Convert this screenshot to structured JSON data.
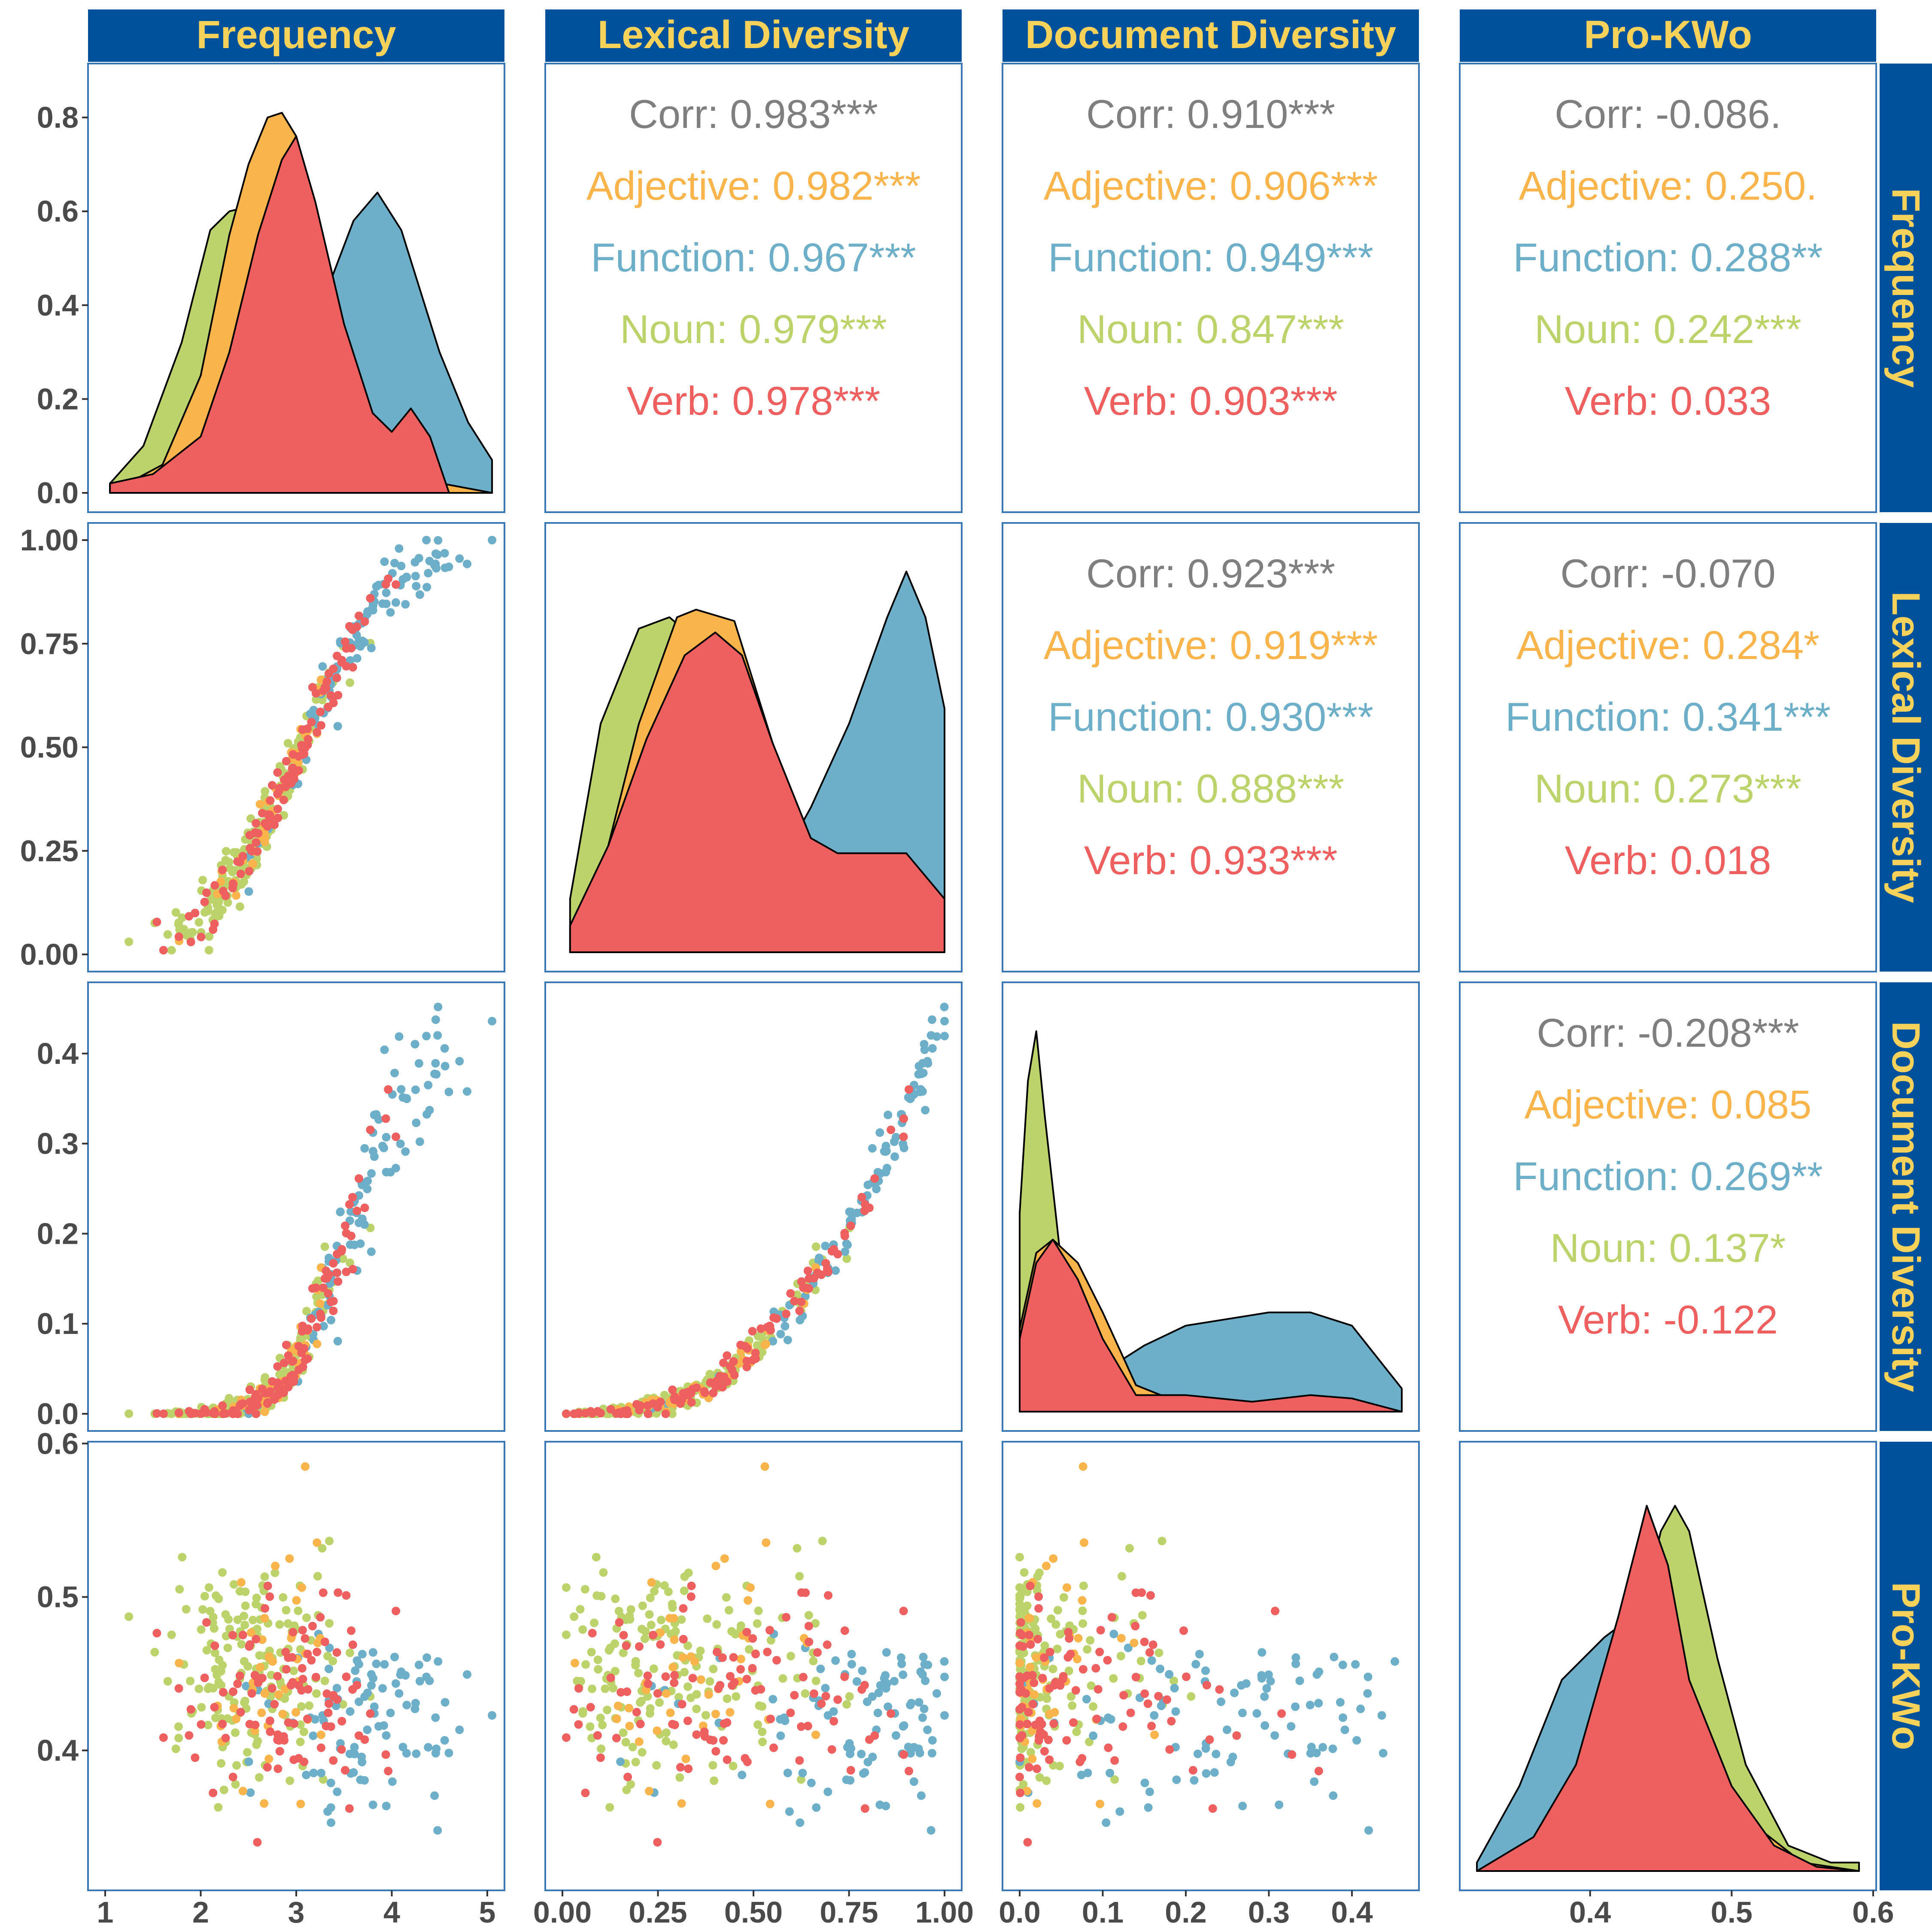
{
  "colors": {
    "strip_bg": "#00519c",
    "strip_text": "#f6d25a",
    "panel_border": "#3a78b5",
    "corr": "#7f7f7f",
    "Adjective": "#f9b44b",
    "Function": "#6daec9",
    "Noun": "#bcd36b",
    "Verb": "#ee5f5f"
  },
  "variables": [
    "Frequency",
    "Lexical Diversity",
    "Document Diversity",
    "Pro-KWo"
  ],
  "chart_data": {
    "type": "scatter",
    "groups": [
      "Adjective",
      "Function",
      "Noun",
      "Verb"
    ],
    "axes": {
      "Frequency": {
        "range": [
          1.0,
          5.0
        ],
        "ticks": [
          1,
          2,
          3,
          4,
          5
        ],
        "tick_labels": [
          "1",
          "2",
          "3",
          "4",
          "5"
        ]
      },
      "Lexical Diversity": {
        "range": [
          0.0,
          1.0
        ],
        "ticks": [
          0,
          0.25,
          0.5,
          0.75,
          1.0
        ],
        "tick_labels": [
          "0.00",
          "0.25",
          "0.50",
          "0.75",
          "1.00"
        ]
      },
      "Document Diversity": {
        "range": [
          0.0,
          0.46
        ],
        "ticks": [
          0,
          0.1,
          0.2,
          0.3,
          0.4
        ],
        "tick_labels": [
          "0.0",
          "0.1",
          "0.2",
          "0.3",
          "0.4"
        ]
      },
      "Pro-KWo": {
        "range": [
          0.32,
          0.59
        ],
        "ticks": [
          0.4,
          0.5,
          0.6
        ],
        "tick_labels": [
          "0.4",
          "0.5",
          "0.6"
        ]
      }
    },
    "density_y_ticks": {
      "ticks": [
        0,
        0.2,
        0.4,
        0.6,
        0.8
      ],
      "tick_labels": [
        "0.0",
        "0.2",
        "0.4",
        "0.6",
        "0.8"
      ],
      "range": [
        0,
        0.86
      ]
    },
    "correlations": [
      {
        "row": "Frequency",
        "col": "Lexical Diversity",
        "lines": [
          "Corr: 0.983***",
          "Adjective: 0.982***",
          "Function: 0.967***",
          "Noun: 0.979***",
          "Verb: 0.978***"
        ]
      },
      {
        "row": "Frequency",
        "col": "Document Diversity",
        "lines": [
          "Corr: 0.910***",
          "Adjective: 0.906***",
          "Function: 0.949***",
          "Noun: 0.847***",
          "Verb: 0.903***"
        ]
      },
      {
        "row": "Frequency",
        "col": "Pro-KWo",
        "lines": [
          "Corr: -0.086.",
          "Adjective: 0.250.",
          "Function: 0.288**",
          "Noun: 0.242***",
          "Verb: 0.033"
        ]
      },
      {
        "row": "Lexical Diversity",
        "col": "Document Diversity",
        "lines": [
          "Corr: 0.923***",
          "Adjective: 0.919***",
          "Function: 0.930***",
          "Noun: 0.888***",
          "Verb: 0.933***"
        ]
      },
      {
        "row": "Lexical Diversity",
        "col": "Pro-KWo",
        "lines": [
          "Corr: -0.070",
          "Adjective: 0.284*",
          "Function: 0.341***",
          "Noun: 0.273***",
          "Verb: 0.018"
        ]
      },
      {
        "row": "Document Diversity",
        "col": "Pro-KWo",
        "lines": [
          "Corr: -0.208***",
          "Adjective: 0.085",
          "Function: 0.269**",
          "Noun: 0.137*",
          "Verb: -0.122"
        ]
      }
    ],
    "densities": {
      "Frequency": {
        "Function": [
          [
            1.05,
            0.0
          ],
          [
            1.5,
            0.05
          ],
          [
            2.0,
            0.18
          ],
          [
            2.5,
            0.32
          ],
          [
            3.0,
            0.36
          ],
          [
            3.3,
            0.42
          ],
          [
            3.6,
            0.58
          ],
          [
            3.85,
            0.64
          ],
          [
            4.1,
            0.56
          ],
          [
            4.5,
            0.3
          ],
          [
            4.8,
            0.15
          ],
          [
            5.05,
            0.07
          ]
        ],
        "Noun": [
          [
            1.05,
            0.02
          ],
          [
            1.4,
            0.1
          ],
          [
            1.8,
            0.32
          ],
          [
            2.1,
            0.56
          ],
          [
            2.3,
            0.6
          ],
          [
            2.5,
            0.61
          ],
          [
            2.7,
            0.66
          ],
          [
            3.0,
            0.63
          ],
          [
            3.3,
            0.38
          ],
          [
            3.6,
            0.14
          ],
          [
            4.0,
            0.04
          ],
          [
            4.4,
            0.005
          ],
          [
            5.05,
            0.0
          ]
        ],
        "Adjective": [
          [
            1.05,
            0.0
          ],
          [
            1.6,
            0.06
          ],
          [
            2.0,
            0.25
          ],
          [
            2.3,
            0.55
          ],
          [
            2.5,
            0.7
          ],
          [
            2.7,
            0.8
          ],
          [
            2.85,
            0.81
          ],
          [
            3.0,
            0.76
          ],
          [
            3.3,
            0.46
          ],
          [
            3.6,
            0.16
          ],
          [
            4.0,
            0.04
          ],
          [
            5.05,
            0.0
          ]
        ],
        "Verb": [
          [
            1.05,
            0.02
          ],
          [
            1.5,
            0.04
          ],
          [
            2.0,
            0.12
          ],
          [
            2.3,
            0.3
          ],
          [
            2.6,
            0.55
          ],
          [
            2.85,
            0.71
          ],
          [
            3.0,
            0.76
          ],
          [
            3.2,
            0.62
          ],
          [
            3.5,
            0.36
          ],
          [
            3.8,
            0.17
          ],
          [
            4.0,
            0.13
          ],
          [
            4.2,
            0.18
          ],
          [
            4.4,
            0.12
          ],
          [
            4.6,
            0.0
          ],
          [
            5.05,
            0.0
          ]
        ]
      },
      "Lexical Diversity": {
        "Function": [
          [
            0.02,
            0.0
          ],
          [
            0.2,
            0.05
          ],
          [
            0.4,
            0.12
          ],
          [
            0.55,
            0.2
          ],
          [
            0.65,
            0.38
          ],
          [
            0.75,
            0.6
          ],
          [
            0.85,
            0.88
          ],
          [
            0.9,
            1.0
          ],
          [
            0.95,
            0.88
          ],
          [
            1.0,
            0.64
          ]
        ],
        "Noun": [
          [
            0.02,
            0.14
          ],
          [
            0.1,
            0.6
          ],
          [
            0.2,
            0.85
          ],
          [
            0.28,
            0.88
          ],
          [
            0.35,
            0.82
          ],
          [
            0.45,
            0.7
          ],
          [
            0.55,
            0.38
          ],
          [
            0.65,
            0.14
          ],
          [
            0.75,
            0.05
          ],
          [
            0.9,
            0.02
          ],
          [
            1.0,
            0.0
          ]
        ],
        "Adjective": [
          [
            0.02,
            0.0
          ],
          [
            0.1,
            0.2
          ],
          [
            0.2,
            0.6
          ],
          [
            0.3,
            0.88
          ],
          [
            0.35,
            0.9
          ],
          [
            0.45,
            0.87
          ],
          [
            0.55,
            0.55
          ],
          [
            0.65,
            0.2
          ],
          [
            0.8,
            0.06
          ],
          [
            1.0,
            0.0
          ]
        ],
        "Verb": [
          [
            0.02,
            0.07
          ],
          [
            0.12,
            0.28
          ],
          [
            0.22,
            0.56
          ],
          [
            0.32,
            0.78
          ],
          [
            0.4,
            0.84
          ],
          [
            0.47,
            0.78
          ],
          [
            0.55,
            0.55
          ],
          [
            0.65,
            0.3
          ],
          [
            0.72,
            0.26
          ],
          [
            0.82,
            0.26
          ],
          [
            0.9,
            0.26
          ],
          [
            1.0,
            0.14
          ]
        ]
      },
      "Document Diversity": {
        "Noun": [
          [
            0.0,
            0.6
          ],
          [
            0.01,
            1.0
          ],
          [
            0.02,
            1.15
          ],
          [
            0.03,
            0.9
          ],
          [
            0.05,
            0.45
          ],
          [
            0.08,
            0.2
          ],
          [
            0.12,
            0.08
          ],
          [
            0.2,
            0.02
          ],
          [
            0.46,
            0.0
          ]
        ],
        "Function": [
          [
            0.0,
            0.0
          ],
          [
            0.05,
            0.06
          ],
          [
            0.1,
            0.12
          ],
          [
            0.15,
            0.2
          ],
          [
            0.2,
            0.26
          ],
          [
            0.3,
            0.3
          ],
          [
            0.35,
            0.3
          ],
          [
            0.4,
            0.26
          ],
          [
            0.46,
            0.07
          ]
        ],
        "Adjective": [
          [
            0.0,
            0.25
          ],
          [
            0.02,
            0.48
          ],
          [
            0.04,
            0.52
          ],
          [
            0.07,
            0.45
          ],
          [
            0.1,
            0.3
          ],
          [
            0.14,
            0.08
          ],
          [
            0.2,
            0.02
          ],
          [
            0.3,
            0.01
          ],
          [
            0.46,
            0.0
          ]
        ],
        "Verb": [
          [
            0.0,
            0.22
          ],
          [
            0.02,
            0.45
          ],
          [
            0.04,
            0.52
          ],
          [
            0.07,
            0.4
          ],
          [
            0.1,
            0.22
          ],
          [
            0.14,
            0.05
          ],
          [
            0.2,
            0.05
          ],
          [
            0.28,
            0.03
          ],
          [
            0.35,
            0.05
          ],
          [
            0.4,
            0.04
          ],
          [
            0.46,
            0.0
          ]
        ]
      },
      "Pro-KWo": {
        "Function": [
          [
            0.32,
            0.02
          ],
          [
            0.35,
            0.2
          ],
          [
            0.38,
            0.45
          ],
          [
            0.41,
            0.55
          ],
          [
            0.43,
            0.6
          ],
          [
            0.45,
            0.55
          ],
          [
            0.48,
            0.3
          ],
          [
            0.52,
            0.08
          ],
          [
            0.55,
            0.02
          ],
          [
            0.59,
            0.0
          ]
        ],
        "Noun": [
          [
            0.32,
            0.0
          ],
          [
            0.36,
            0.05
          ],
          [
            0.4,
            0.2
          ],
          [
            0.43,
            0.52
          ],
          [
            0.45,
            0.8
          ],
          [
            0.46,
            0.86
          ],
          [
            0.47,
            0.8
          ],
          [
            0.49,
            0.5
          ],
          [
            0.51,
            0.25
          ],
          [
            0.54,
            0.06
          ],
          [
            0.57,
            0.02
          ],
          [
            0.59,
            0.02
          ]
        ],
        "Adjective": [
          [
            0.32,
            0.0
          ],
          [
            0.38,
            0.1
          ],
          [
            0.42,
            0.5
          ],
          [
            0.44,
            0.7
          ],
          [
            0.46,
            0.55
          ],
          [
            0.5,
            0.15
          ],
          [
            0.55,
            0.02
          ],
          [
            0.59,
            0.0
          ]
        ],
        "Verb": [
          [
            0.32,
            0.0
          ],
          [
            0.36,
            0.08
          ],
          [
            0.39,
            0.25
          ],
          [
            0.42,
            0.6
          ],
          [
            0.44,
            0.86
          ],
          [
            0.455,
            0.72
          ],
          [
            0.47,
            0.45
          ],
          [
            0.5,
            0.2
          ],
          [
            0.53,
            0.06
          ],
          [
            0.56,
            0.01
          ],
          [
            0.59,
            0.0
          ]
        ]
      }
    },
    "density_scale": {
      "Frequency": 0.86,
      "Lexical Diversity": 1.06,
      "Document Diversity": 1.22,
      "Pro-KWo": 0.95
    }
  }
}
